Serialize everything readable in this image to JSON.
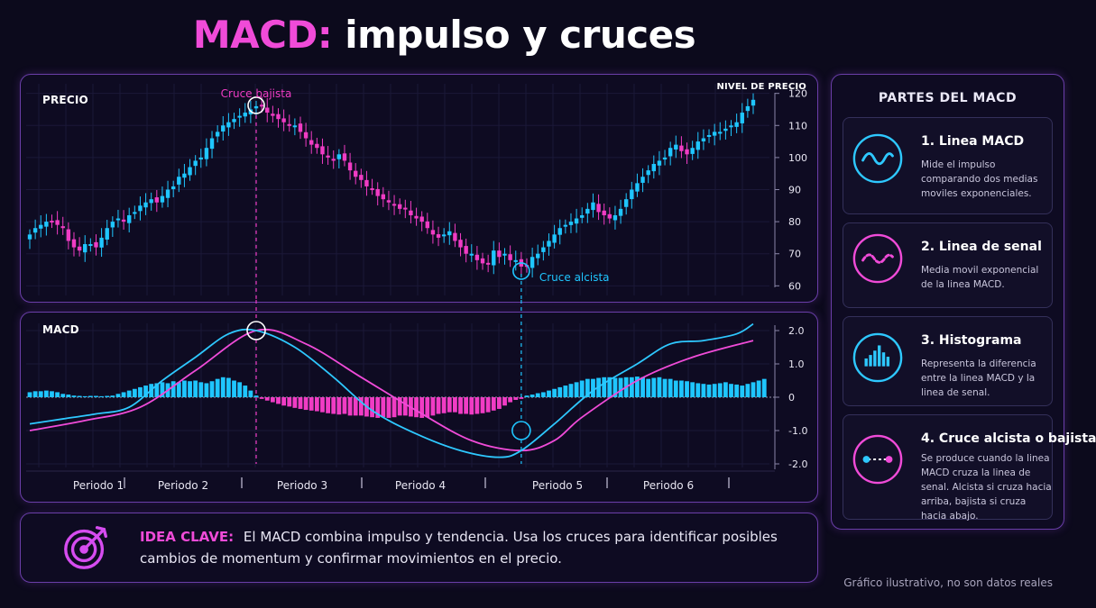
{
  "title": {
    "accent": "MACD:",
    "rest": "impulso y cruces"
  },
  "price_panel": {
    "label": "PRECIO",
    "axis_title": "NIVEL DE PRECIO",
    "cross_bear": "Cruce bajista",
    "cross_bull": "Cruce alcista"
  },
  "macd_panel": {
    "label": "MACD"
  },
  "periods": [
    "Periodo 1",
    "Periodo 2",
    "Periodo 3",
    "Periodo 4",
    "Periodo 5",
    "Periodo 6"
  ],
  "idea": {
    "key": "IDEA CLAVE:",
    "text": "El MACD combina impulso y tendencia. Usa los cruces para identificar posibles cambios de momentum y confirmar movimientos en el precio."
  },
  "parts": {
    "title": "PARTES DEL MACD",
    "items": [
      {
        "title": "1. Linea MACD",
        "desc": "Mide el impulso comparando dos medias moviles exponenciales.",
        "icon": "wave-icon"
      },
      {
        "title": "2. Linea de senal",
        "desc": "Media movil exponencial de la linea MACD.",
        "icon": "dashed-wave-icon"
      },
      {
        "title": "3. Histograma",
        "desc": "Representa la diferencia entre la linea MACD y la linea de senal.",
        "icon": "histogram-icon"
      },
      {
        "title": "4. Cruce alcista o bajista",
        "desc": "Se produce cuando la linea MACD cruza la linea de senal. Alcista si cruza hacia arriba, bajista si cruza hacia abajo.",
        "icon": "cross-dots-icon"
      }
    ]
  },
  "footnote": "Gráfico ilustrativo, no son datos reales",
  "colors": {
    "up": "#1fc6ff",
    "down": "#f03cc4",
    "macd_line": "#2ec8ff",
    "signal_line": "#f04bd8",
    "accent": "#f04bd8",
    "panel_border": "#6a3ea8"
  },
  "chart_data": [
    {
      "type": "candlestick",
      "title": "PRECIO",
      "ylabel": "NIVEL DE PRECIO",
      "ylim": [
        57,
        123
      ],
      "yticks": [
        120,
        110,
        100,
        90,
        80,
        70,
        60
      ],
      "close": [
        76,
        78,
        79,
        80,
        80,
        79,
        78,
        74,
        72,
        71,
        73,
        73,
        72,
        75,
        78,
        80,
        81,
        80,
        82,
        83,
        85,
        86,
        87,
        86,
        88,
        90,
        91,
        94,
        95,
        97,
        99,
        100,
        103,
        106,
        108,
        110,
        111,
        112,
        113,
        114,
        115,
        116,
        116,
        114,
        113,
        112,
        111,
        110,
        110,
        108,
        106,
        104,
        103,
        101,
        100,
        99,
        101,
        99,
        96,
        94,
        93,
        91,
        90,
        88,
        87,
        86,
        85,
        84,
        84,
        82,
        81,
        80,
        78,
        76,
        75,
        76,
        77,
        74,
        72,
        70,
        70,
        68,
        67,
        67,
        71,
        69,
        70,
        68,
        68,
        66,
        66,
        69,
        70,
        72,
        74,
        76,
        78,
        79,
        80,
        81,
        82,
        84,
        86,
        83,
        82,
        81,
        82,
        84,
        87,
        90,
        92,
        94,
        96,
        98,
        99,
        100,
        103,
        104,
        102,
        101,
        103,
        105,
        106,
        107,
        108,
        108,
        109,
        110,
        111,
        114,
        116,
        118
      ],
      "annotations": [
        {
          "text": "Cruce bajista",
          "period_index": 41
        },
        {
          "text": "Cruce alcista",
          "period_index": 89
        }
      ]
    },
    {
      "type": "line+histogram",
      "title": "MACD",
      "ylim": [
        -2.0,
        2.0
      ],
      "yticks": [
        "2.0",
        "1.0",
        "0",
        "-1.0",
        "-2.0"
      ],
      "series": [
        {
          "name": "Linea MACD",
          "x": [
            0,
            6,
            12,
            18,
            24,
            30,
            36,
            41,
            48,
            55,
            62,
            70,
            78,
            85,
            89,
            95,
            102,
            110,
            116,
            122,
            128,
            131
          ],
          "values": [
            -0.8,
            -0.65,
            -0.5,
            -0.3,
            0.5,
            1.2,
            1.9,
            2.0,
            1.5,
            0.6,
            -0.4,
            -1.1,
            -1.6,
            -1.8,
            -1.6,
            -0.8,
            0.2,
            1.0,
            1.6,
            1.7,
            1.9,
            2.2
          ]
        },
        {
          "name": "Linea de senal",
          "x": [
            0,
            10,
            20,
            30,
            41,
            50,
            60,
            70,
            80,
            89,
            95,
            100,
            110,
            120,
            131
          ],
          "values": [
            -1.0,
            -0.7,
            -0.3,
            0.8,
            2.0,
            1.6,
            0.6,
            -0.4,
            -1.3,
            -1.6,
            -1.3,
            -0.6,
            0.5,
            1.2,
            1.7
          ]
        }
      ],
      "histogram": [
        0.15,
        0.18,
        0.18,
        0.2,
        0.18,
        0.15,
        0.1,
        0.08,
        0.05,
        0.04,
        0.03,
        0.04,
        0.04,
        0.03,
        0.04,
        0.05,
        0.1,
        0.15,
        0.2,
        0.25,
        0.3,
        0.35,
        0.4,
        0.42,
        0.45,
        0.42,
        0.48,
        0.45,
        0.5,
        0.48,
        0.5,
        0.45,
        0.42,
        0.48,
        0.55,
        0.6,
        0.58,
        0.5,
        0.45,
        0.35,
        0.2,
        0.05,
        -0.05,
        -0.1,
        -0.15,
        -0.2,
        -0.25,
        -0.28,
        -0.32,
        -0.35,
        -0.38,
        -0.4,
        -0.42,
        -0.45,
        -0.48,
        -0.5,
        -0.52,
        -0.5,
        -0.55,
        -0.55,
        -0.55,
        -0.58,
        -0.6,
        -0.62,
        -0.6,
        -0.62,
        -0.6,
        -0.55,
        -0.55,
        -0.58,
        -0.6,
        -0.62,
        -0.6,
        -0.55,
        -0.5,
        -0.48,
        -0.45,
        -0.45,
        -0.5,
        -0.5,
        -0.52,
        -0.5,
        -0.48,
        -0.45,
        -0.4,
        -0.35,
        -0.25,
        -0.15,
        -0.08,
        -0.05,
        0.05,
        0.08,
        0.12,
        0.15,
        0.2,
        0.25,
        0.3,
        0.35,
        0.4,
        0.45,
        0.5,
        0.55,
        0.55,
        0.58,
        0.6,
        0.6,
        0.58,
        0.58,
        0.6,
        0.6,
        0.62,
        0.6,
        0.55,
        0.58,
        0.6,
        0.55,
        0.55,
        0.5,
        0.5,
        0.48,
        0.45,
        0.42,
        0.4,
        0.38,
        0.4,
        0.42,
        0.45,
        0.4,
        0.38,
        0.35,
        0.4,
        0.45,
        0.5,
        0.55
      ]
    }
  ]
}
